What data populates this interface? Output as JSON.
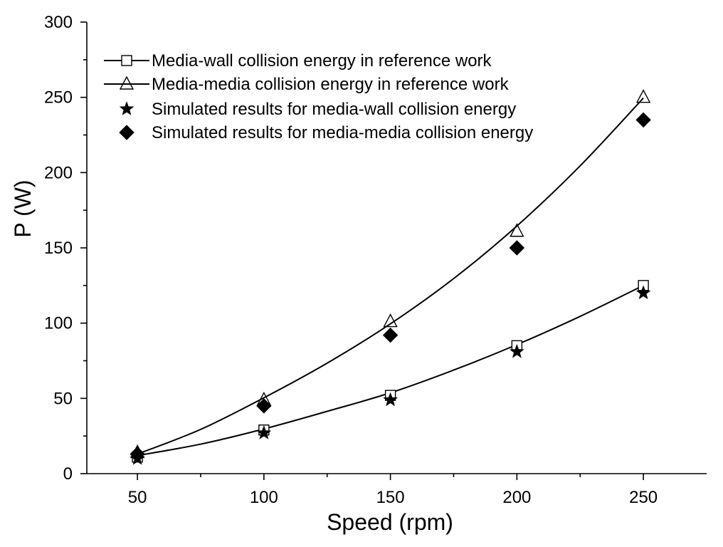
{
  "chart_data": {
    "type": "scatter",
    "title": "",
    "xlabel": "Speed (rpm)",
    "ylabel": "P (W)",
    "xlim": [
      30,
      275
    ],
    "ylim": [
      0,
      300
    ],
    "x_major_ticks": [
      50,
      100,
      150,
      200,
      250
    ],
    "x_minor_ticks": [
      75,
      125,
      175,
      225
    ],
    "y_major_ticks": [
      0,
      50,
      100,
      150,
      200,
      250,
      300
    ],
    "y_minor_ticks": [
      25,
      75,
      125,
      175,
      225,
      275
    ],
    "grid": false,
    "legend_position": "top-left",
    "series": [
      {
        "name": "Media-wall collision energy in reference work",
        "marker": "open-square",
        "line": true,
        "x": [
          50,
          100,
          150,
          200,
          250
        ],
        "y": [
          11,
          29,
          52,
          85,
          125
        ]
      },
      {
        "name": "Media-media collision energy in reference work",
        "marker": "open-triangle",
        "line": true,
        "x": [
          50,
          100,
          150,
          200,
          250
        ],
        "y": [
          14,
          49,
          101,
          161,
          250
        ]
      },
      {
        "name": "Simulated results for media-wall collision energy",
        "marker": "filled-star",
        "line": false,
        "x": [
          50,
          100,
          150,
          200,
          250
        ],
        "y": [
          10,
          27,
          49,
          81,
          120
        ]
      },
      {
        "name": "Simulated results for media-media collision energy",
        "marker": "filled-diamond",
        "line": false,
        "x": [
          50,
          100,
          150,
          200,
          250
        ],
        "y": [
          13,
          45,
          92,
          150,
          235
        ]
      }
    ],
    "fit_curves": [
      {
        "series": "Media-wall collision energy in reference work",
        "x": [
          50,
          75,
          100,
          125,
          150,
          175,
          200,
          225,
          250
        ],
        "y": [
          12,
          19.6,
          29.7,
          41.4,
          53.7,
          68.8,
          85.7,
          104.5,
          125
        ]
      },
      {
        "series": "Media-media collision energy in reference work",
        "x": [
          50,
          75,
          100,
          125,
          150,
          175,
          200,
          225,
          250
        ],
        "y": [
          13,
          29.4,
          50.4,
          73.4,
          99.5,
          129.6,
          164.5,
          204.5,
          249.5
        ]
      }
    ]
  }
}
